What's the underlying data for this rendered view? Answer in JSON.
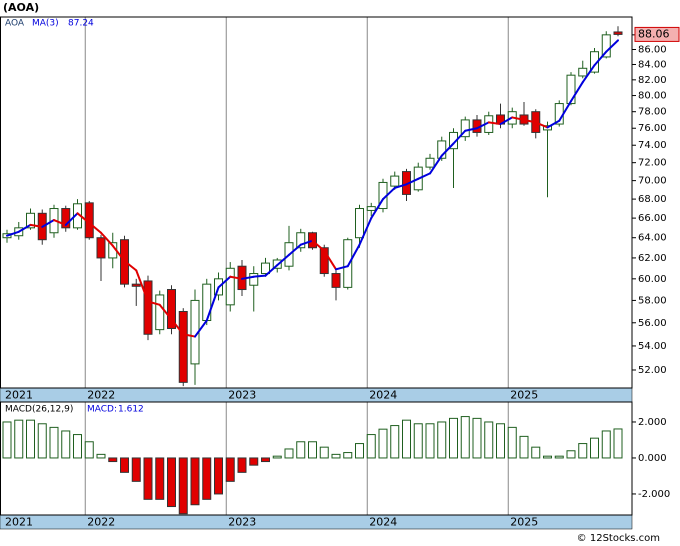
{
  "chart_data": [
    {
      "type": "candlestick",
      "title": "(AOA)",
      "categories": [
        "2021",
        null,
        null,
        null,
        null,
        null,
        null,
        "2022",
        null,
        null,
        null,
        null,
        null,
        null,
        null,
        null,
        null,
        null,
        null,
        "2023",
        null,
        null,
        null,
        null,
        null,
        null,
        null,
        null,
        null,
        null,
        null,
        "2024",
        null,
        null,
        null,
        null,
        null,
        null,
        null,
        null,
        null,
        null,
        null,
        "2025",
        null,
        null,
        null,
        null,
        null,
        null,
        null,
        null,
        null
      ],
      "series": [
        {
          "name": "AOA",
          "color": "#1a3a6b",
          "up_color": "#ffffff",
          "down_color": "#e00000",
          "edge_color": "#1f5f1f",
          "open": [
            64.0,
            64.2,
            65.0,
            66.5,
            64.5,
            67.0,
            65.0,
            67.6,
            64.0,
            62.0,
            63.8,
            59.5,
            59.8,
            55.4,
            59.0,
            57.0,
            52.5,
            56.2,
            58.5,
            57.6,
            61.2,
            59.4,
            60.5,
            61.0,
            61.2,
            63.0,
            64.5,
            63.0,
            60.5,
            59.2,
            64.0,
            66.8,
            67.0,
            69.4,
            71.0,
            69.0,
            71.5,
            72.5,
            73.6,
            75.0,
            77.0,
            75.5,
            77.6,
            76.5,
            77.6,
            78.0,
            75.8,
            76.5,
            79.0,
            82.5,
            83.0,
            85.0,
            88.4
          ],
          "high": [
            64.8,
            65.6,
            67.0,
            66.9,
            67.4,
            67.3,
            68.0,
            67.8,
            64.3,
            64.5,
            64.2,
            60.0,
            60.3,
            58.9,
            59.4,
            57.3,
            59.0,
            60.0,
            60.6,
            61.6,
            61.8,
            61.2,
            62.0,
            62.0,
            65.2,
            64.9,
            64.6,
            63.3,
            60.8,
            64.0,
            67.4,
            67.6,
            70.2,
            71.0,
            71.3,
            72.0,
            73.0,
            75.0,
            76.0,
            77.4,
            77.6,
            78.0,
            79.0,
            78.5,
            79.2,
            78.3,
            76.8,
            79.4,
            83.0,
            84.5,
            86.2,
            88.5,
            89.2
          ],
          "low": [
            63.5,
            63.8,
            64.8,
            63.3,
            64.0,
            64.6,
            64.8,
            63.8,
            59.8,
            61.0,
            59.2,
            57.5,
            54.5,
            55.0,
            55.0,
            50.7,
            50.8,
            55.8,
            58.0,
            57.0,
            58.4,
            57.0,
            60.2,
            60.6,
            60.8,
            62.6,
            62.8,
            60.2,
            58.0,
            59.0,
            63.0,
            66.2,
            66.6,
            69.0,
            67.8,
            68.8,
            71.2,
            72.2,
            69.2,
            74.5,
            75.0,
            75.2,
            76.0,
            76.0,
            76.3,
            74.8,
            68.2,
            76.2,
            78.8,
            82.2,
            82.8,
            84.8,
            87.8
          ],
          "close": [
            64.4,
            65.0,
            66.5,
            63.8,
            67.0,
            65.0,
            67.5,
            64.0,
            62.0,
            63.5,
            59.5,
            59.3,
            55.0,
            58.5,
            55.5,
            51.0,
            58.0,
            59.5,
            60.0,
            61.0,
            59.0,
            60.5,
            61.5,
            61.8,
            63.5,
            64.5,
            63.0,
            60.5,
            59.2,
            63.8,
            67.0,
            67.2,
            69.8,
            70.5,
            68.5,
            71.5,
            72.5,
            74.5,
            75.5,
            77.0,
            75.5,
            77.5,
            76.5,
            78.0,
            76.5,
            75.5,
            76.3,
            79.0,
            82.6,
            83.5,
            85.7,
            88.0,
            88.06
          ],
          "last_label_fill": "#f4b0b0",
          "last_label_border": "#d00000"
        },
        {
          "name": "MA(3)",
          "color": "#0000dd",
          "down_color": "#e00000",
          "values": [
            64.2,
            64.6,
            65.3,
            65.1,
            65.8,
            65.3,
            66.5,
            65.5,
            64.5,
            63.2,
            61.7,
            60.8,
            57.9,
            57.6,
            56.3,
            55.0,
            54.8,
            56.2,
            59.2,
            60.2,
            60.0,
            60.2,
            60.3,
            61.3,
            62.3,
            63.3,
            63.7,
            62.7,
            60.9,
            61.2,
            63.3,
            66.0,
            68.0,
            69.2,
            69.6,
            70.2,
            70.8,
            72.8,
            74.2,
            75.7,
            76.0,
            76.7,
            76.5,
            77.3,
            77.0,
            76.7,
            76.1,
            76.9,
            79.3,
            81.7,
            83.9,
            85.7,
            87.24
          ]
        }
      ],
      "log_y": true,
      "ylim": [
        50.55,
        90.5
      ],
      "yticks": [
        {
          "value": 52,
          "label": "52.00"
        },
        {
          "value": 54,
          "label": "54.00"
        },
        {
          "value": 56,
          "label": "56.00"
        },
        {
          "value": 58,
          "label": "58.00"
        },
        {
          "value": 60,
          "label": "60.00"
        },
        {
          "value": 62,
          "label": "62.00"
        },
        {
          "value": 64,
          "label": "64.00"
        },
        {
          "value": 66,
          "label": "66.00"
        },
        {
          "value": 68,
          "label": "68.00"
        },
        {
          "value": 70,
          "label": "70.00"
        },
        {
          "value": 72,
          "label": "72.00"
        },
        {
          "value": 74,
          "label": "74.00"
        },
        {
          "value": 76,
          "label": "76.00"
        },
        {
          "value": 78,
          "label": "78.00"
        },
        {
          "value": 80,
          "label": "80.00"
        },
        {
          "value": 82,
          "label": "82.00"
        },
        {
          "value": 84,
          "label": "84.00"
        },
        {
          "value": 86,
          "label": "86.00"
        },
        {
          "value": 88,
          "label": "88.00"
        }
      ],
      "year_strip_color": "#a9cde6",
      "footer": "© 12Stocks.com"
    },
    {
      "type": "bar",
      "title": "MACD(26,12,9)",
      "legend_prefix": "MACD:",
      "legend_color": "#0000dd",
      "categories": [
        "2021",
        null,
        null,
        null,
        null,
        null,
        null,
        "2022",
        null,
        null,
        null,
        null,
        null,
        null,
        null,
        null,
        null,
        null,
        null,
        "2023",
        null,
        null,
        null,
        null,
        null,
        null,
        null,
        null,
        null,
        null,
        null,
        "2024",
        null,
        null,
        null,
        null,
        null,
        null,
        null,
        null,
        null,
        null,
        null,
        "2025",
        null,
        null,
        null,
        null,
        null,
        null,
        null,
        null,
        null
      ],
      "values": [
        2.0,
        2.1,
        2.1,
        1.9,
        1.7,
        1.5,
        1.3,
        0.9,
        0.2,
        -0.2,
        -0.8,
        -1.3,
        -2.3,
        -2.3,
        -2.7,
        -3.1,
        -2.6,
        -2.3,
        -2.0,
        -1.3,
        -0.8,
        -0.4,
        -0.2,
        0.1,
        0.5,
        0.9,
        0.9,
        0.6,
        0.2,
        0.3,
        0.8,
        1.3,
        1.6,
        1.8,
        2.1,
        1.9,
        1.9,
        2.0,
        2.2,
        2.3,
        2.2,
        2.0,
        1.9,
        1.7,
        1.2,
        0.6,
        0.1,
        0.1,
        0.4,
        0.8,
        1.1,
        1.5,
        1.612
      ],
      "up_color": "#ffffff",
      "down_color": "#e00000",
      "edge_color": "#1f5f1f",
      "ylim": [
        -3.17,
        3.11
      ],
      "yticks": [
        {
          "value": 2,
          "label": "2.000"
        },
        {
          "value": 0,
          "label": "0.000"
        },
        {
          "value": -2,
          "label": "-2.000"
        }
      ]
    }
  ]
}
